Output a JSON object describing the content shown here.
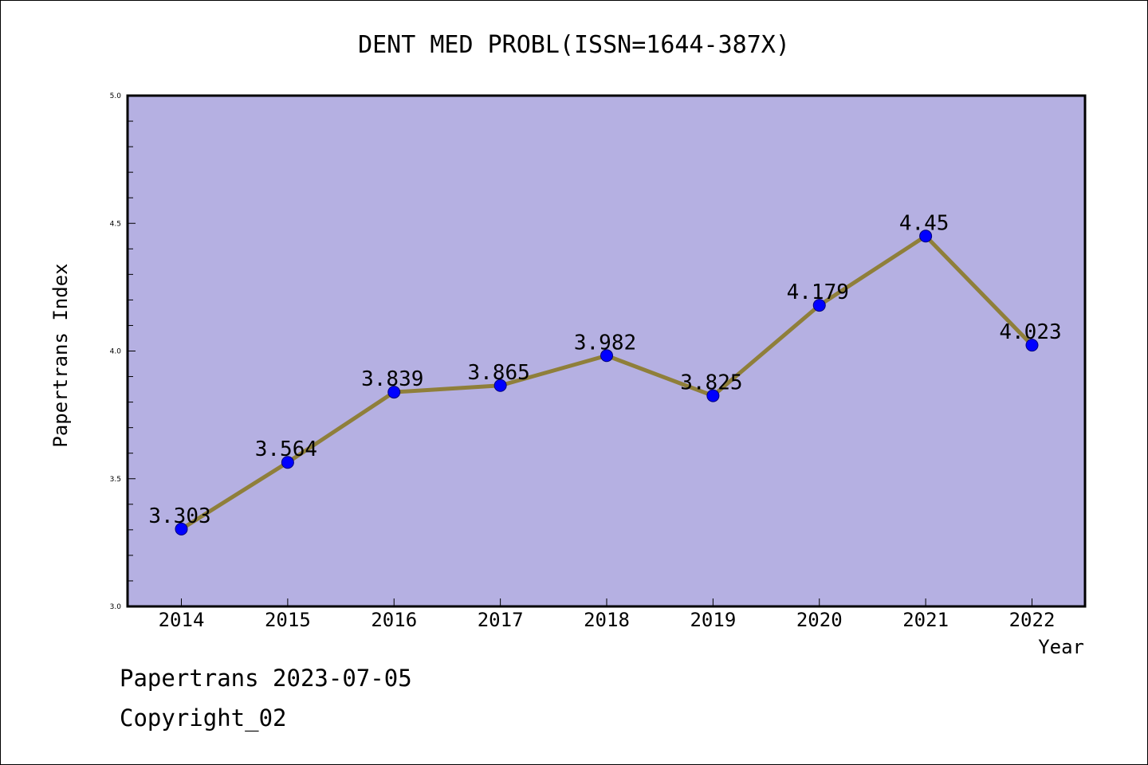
{
  "colors": {
    "plot_background": "#b5b0e2",
    "line": "#8f7f3a",
    "marker": "#0000ff",
    "marker_edge": "#00007a"
  },
  "footer": {
    "line1": "Papertrans 2023-07-05",
    "line2": "Copyright_02"
  },
  "chart_data": {
    "type": "line",
    "title": "DENT MED PROBL(ISSN=1644-387X)",
    "xlabel": "Year",
    "ylabel": "Papertrans Index",
    "categories": [
      "2014",
      "2015",
      "2016",
      "2017",
      "2018",
      "2019",
      "2020",
      "2021",
      "2022"
    ],
    "values": [
      3.303,
      3.564,
      3.839,
      3.865,
      3.982,
      3.825,
      4.179,
      4.45,
      4.023
    ],
    "data_labels": [
      "3.303",
      "3.564",
      "3.839",
      "3.865",
      "3.982",
      "3.825",
      "4.179",
      "4.45",
      "4.023"
    ],
    "ylim": [
      3.0,
      5.0
    ],
    "yticks": [
      "3.0",
      "3.5",
      "4.0",
      "4.5",
      "5.0"
    ],
    "grid": false,
    "legend": "none"
  }
}
